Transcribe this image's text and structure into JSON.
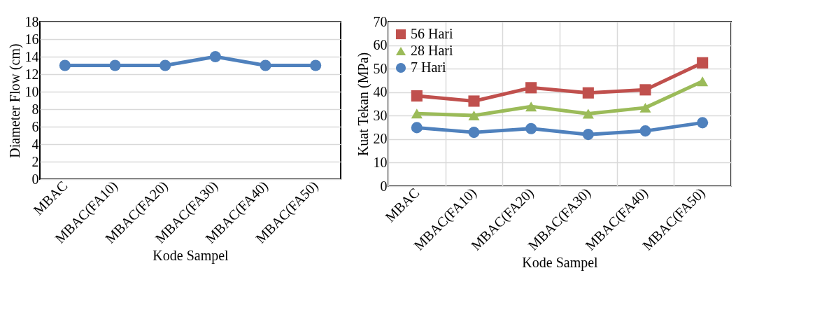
{
  "chart_data": [
    {
      "type": "line",
      "xlabel": "Kode Sampel",
      "ylabel": "Diameter Flow (cm)",
      "categories": [
        "MBAC",
        "MBAC(FA10)",
        "MBAC(FA20)",
        "MBAC(FA30)",
        "MBAC(FA40)",
        "MBAC(FA50)"
      ],
      "series": [
        {
          "color": "#4f81bd",
          "marker": "circle",
          "values": [
            13,
            13,
            13,
            14,
            13,
            13
          ]
        }
      ],
      "ylim": [
        0,
        18
      ],
      "yticks": [
        0,
        2,
        4,
        6,
        8,
        10,
        12,
        14,
        16,
        18
      ],
      "grid": "y"
    },
    {
      "type": "line",
      "xlabel": "Kode Sampel",
      "ylabel": "Kuat Tekan (MPa)",
      "categories": [
        "MBAC",
        "MBAC(FA10)",
        "MBAC(FA20)",
        "MBAC(FA30)",
        "MBAC(FA40)",
        "MBAC(FA50)"
      ],
      "series": [
        {
          "name": "56 Hari",
          "color": "#c0504d",
          "marker": "square",
          "values": [
            38.4,
            36.2,
            41.9,
            39.7,
            41.0,
            52.5
          ]
        },
        {
          "name": "28 Hari",
          "color": "#9bbb59",
          "marker": "triangle",
          "values": [
            30.9,
            30.1,
            33.9,
            30.8,
            33.4,
            44.6
          ]
        },
        {
          "name": "7 Hari",
          "color": "#4f81bd",
          "marker": "circle",
          "values": [
            24.9,
            22.9,
            24.5,
            22.0,
            23.5,
            27.0
          ]
        }
      ],
      "ylim": [
        0,
        70
      ],
      "yticks": [
        0,
        10,
        20,
        30,
        40,
        50,
        60,
        70
      ],
      "grid": true,
      "legend": "top left"
    }
  ]
}
